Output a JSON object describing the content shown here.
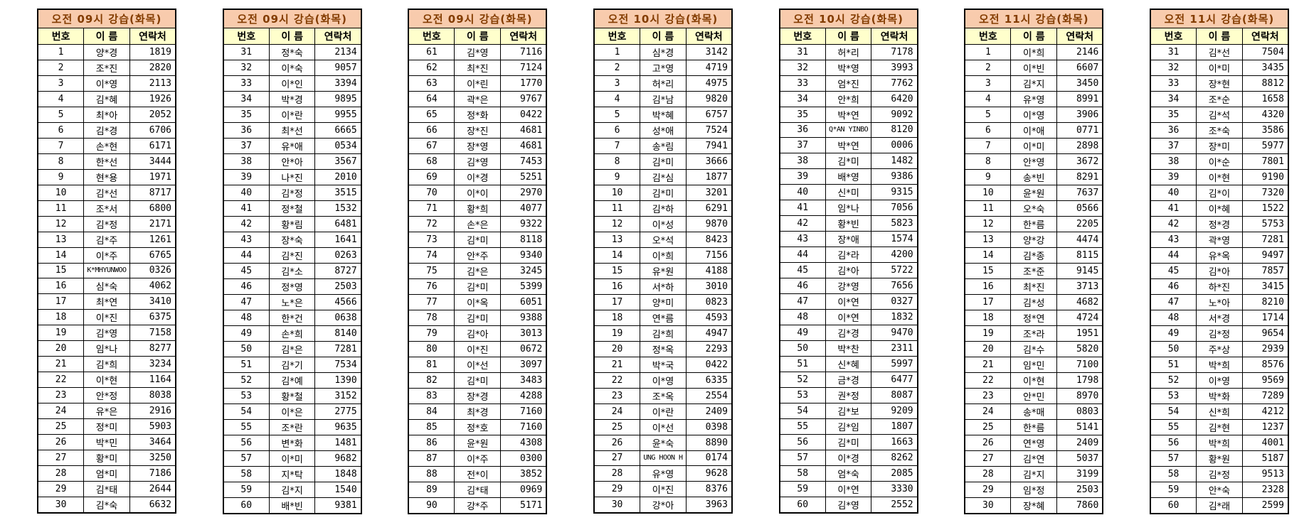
{
  "colors": {
    "title_bg": "#f8cbad",
    "title_text": "#833c00",
    "header_bg": "#ffffcc",
    "border": "#000000",
    "page_bg": "#ffffff"
  },
  "tables": [
    {
      "title": "오전 09시 강습(화목)",
      "headers": [
        "번호",
        "이 름",
        "연락처"
      ],
      "rows": [
        [
          "1",
          "양*경",
          "1819"
        ],
        [
          "2",
          "조*진",
          "2820"
        ],
        [
          "3",
          "이*영",
          "2113"
        ],
        [
          "4",
          "김*혜",
          "1926"
        ],
        [
          "5",
          "최*아",
          "2052"
        ],
        [
          "6",
          "김*경",
          "6706"
        ],
        [
          "7",
          "손*현",
          "6171"
        ],
        [
          "8",
          "한*선",
          "3444"
        ],
        [
          "9",
          "현*용",
          "1971"
        ],
        [
          "10",
          "김*선",
          "8717"
        ],
        [
          "11",
          "조*서",
          "6800"
        ],
        [
          "12",
          "김*정",
          "2171"
        ],
        [
          "13",
          "김*주",
          "1261"
        ],
        [
          "14",
          "이*주",
          "6765"
        ],
        [
          "15",
          "K*MHYUNWOO",
          "0326"
        ],
        [
          "16",
          "심*숙",
          "4062"
        ],
        [
          "17",
          "최*연",
          "3410"
        ],
        [
          "18",
          "이*진",
          "6375"
        ],
        [
          "19",
          "김*영",
          "7158"
        ],
        [
          "20",
          "임*나",
          "8277"
        ],
        [
          "21",
          "김*희",
          "3234"
        ],
        [
          "22",
          "이*현",
          "1164"
        ],
        [
          "23",
          "안*정",
          "8038"
        ],
        [
          "24",
          "유*은",
          "2916"
        ],
        [
          "25",
          "정*미",
          "5903"
        ],
        [
          "26",
          "박*민",
          "3464"
        ],
        [
          "27",
          "황*미",
          "3250"
        ],
        [
          "28",
          "엄*미",
          "7186"
        ],
        [
          "29",
          "김*태",
          "2644"
        ],
        [
          "30",
          "김*숙",
          "6632"
        ]
      ]
    },
    {
      "title": "오전 09시 강습(화목)",
      "headers": [
        "번호",
        "이 름",
        "연락처"
      ],
      "rows": [
        [
          "31",
          "정*숙",
          "2134"
        ],
        [
          "32",
          "이*숙",
          "9057"
        ],
        [
          "33",
          "이*인",
          "3394"
        ],
        [
          "34",
          "박*경",
          "9895"
        ],
        [
          "35",
          "이*란",
          "9955"
        ],
        [
          "36",
          "최*선",
          "6665"
        ],
        [
          "37",
          "유*애",
          "0534"
        ],
        [
          "38",
          "안*아",
          "3567"
        ],
        [
          "39",
          "나*진",
          "2010"
        ],
        [
          "40",
          "김*정",
          "3515"
        ],
        [
          "41",
          "정*철",
          "1532"
        ],
        [
          "42",
          "황*림",
          "6481"
        ],
        [
          "43",
          "장*숙",
          "1641"
        ],
        [
          "44",
          "김*진",
          "0263"
        ],
        [
          "45",
          "김*소",
          "8727"
        ],
        [
          "46",
          "정*영",
          "2503"
        ],
        [
          "47",
          "노*은",
          "4566"
        ],
        [
          "48",
          "한*건",
          "0638"
        ],
        [
          "49",
          "손*희",
          "8140"
        ],
        [
          "50",
          "김*은",
          "7281"
        ],
        [
          "51",
          "김*기",
          "7534"
        ],
        [
          "52",
          "김*예",
          "1390"
        ],
        [
          "53",
          "황*철",
          "3152"
        ],
        [
          "54",
          "이*은",
          "2775"
        ],
        [
          "55",
          "조*란",
          "9635"
        ],
        [
          "56",
          "변*화",
          "1481"
        ],
        [
          "57",
          "이*미",
          "9682"
        ],
        [
          "58",
          "지*탁",
          "1848"
        ],
        [
          "59",
          "김*지",
          "1540"
        ],
        [
          "60",
          "배*빈",
          "9381"
        ]
      ]
    },
    {
      "title": "오전 09시 강습(화목)",
      "headers": [
        "번호",
        "이 름",
        "연락처"
      ],
      "rows": [
        [
          "61",
          "김*영",
          "7116"
        ],
        [
          "62",
          "최*진",
          "7124"
        ],
        [
          "63",
          "이*린",
          "1770"
        ],
        [
          "64",
          "곽*은",
          "9767"
        ],
        [
          "65",
          "정*화",
          "0422"
        ],
        [
          "66",
          "장*진",
          "4681"
        ],
        [
          "67",
          "장*영",
          "4681"
        ],
        [
          "68",
          "김*영",
          "7453"
        ],
        [
          "69",
          "이*경",
          "5251"
        ],
        [
          "70",
          "이*이",
          "2970"
        ],
        [
          "71",
          "황*희",
          "4077"
        ],
        [
          "72",
          "손*은",
          "9322"
        ],
        [
          "73",
          "김*미",
          "8118"
        ],
        [
          "74",
          "안*주",
          "9340"
        ],
        [
          "75",
          "김*은",
          "3245"
        ],
        [
          "76",
          "김*미",
          "5399"
        ],
        [
          "77",
          "이*옥",
          "6051"
        ],
        [
          "78",
          "김*미",
          "9388"
        ],
        [
          "79",
          "김*아",
          "3013"
        ],
        [
          "80",
          "이*진",
          "0672"
        ],
        [
          "81",
          "이*선",
          "3097"
        ],
        [
          "82",
          "김*미",
          "3483"
        ],
        [
          "83",
          "장*경",
          "4288"
        ],
        [
          "84",
          "최*경",
          "7160"
        ],
        [
          "85",
          "정*호",
          "7160"
        ],
        [
          "86",
          "윤*원",
          "4308"
        ],
        [
          "87",
          "이*주",
          "0300"
        ],
        [
          "88",
          "전*이",
          "3852"
        ],
        [
          "89",
          "김*태",
          "0969"
        ],
        [
          "90",
          "강*주",
          "5171"
        ]
      ]
    },
    {
      "title": "오전 10시 강습(화목)",
      "headers": [
        "번호",
        "이 름",
        "연락처"
      ],
      "rows": [
        [
          "1",
          "심*경",
          "3142"
        ],
        [
          "2",
          "고*영",
          "4719"
        ],
        [
          "3",
          "허*리",
          "4975"
        ],
        [
          "4",
          "김*남",
          "9820"
        ],
        [
          "5",
          "박*혜",
          "6757"
        ],
        [
          "6",
          "성*애",
          "7524"
        ],
        [
          "7",
          "송*림",
          "7941"
        ],
        [
          "8",
          "김*미",
          "3666"
        ],
        [
          "9",
          "김*심",
          "1877"
        ],
        [
          "10",
          "김*미",
          "3201"
        ],
        [
          "11",
          "김*하",
          "6291"
        ],
        [
          "12",
          "이*성",
          "9870"
        ],
        [
          "13",
          "오*석",
          "8423"
        ],
        [
          "14",
          "이*희",
          "7156"
        ],
        [
          "15",
          "유*원",
          "4188"
        ],
        [
          "16",
          "서*하",
          "3010"
        ],
        [
          "17",
          "양*미",
          "0823"
        ],
        [
          "18",
          "연*름",
          "4593"
        ],
        [
          "19",
          "김*희",
          "4947"
        ],
        [
          "20",
          "정*옥",
          "2293"
        ],
        [
          "21",
          "박*국",
          "0422"
        ],
        [
          "22",
          "이*영",
          "6335"
        ],
        [
          "23",
          "조*옥",
          "2554"
        ],
        [
          "24",
          "이*란",
          "2409"
        ],
        [
          "25",
          "이*선",
          "0398"
        ],
        [
          "26",
          "윤*숙",
          "8890"
        ],
        [
          "27",
          "UNG HOON H",
          "0174"
        ],
        [
          "28",
          "유*영",
          "9628"
        ],
        [
          "29",
          "이*진",
          "8376"
        ],
        [
          "30",
          "강*아",
          "3963"
        ]
      ]
    },
    {
      "title": "오전 10시 강습(화목)",
      "headers": [
        "번호",
        "이 름",
        "연락처"
      ],
      "rows": [
        [
          "31",
          "허*리",
          "7178"
        ],
        [
          "32",
          "박*영",
          "3993"
        ],
        [
          "33",
          "엄*진",
          "7762"
        ],
        [
          "34",
          "안*희",
          "6420"
        ],
        [
          "35",
          "박*연",
          "9092"
        ],
        [
          "36",
          "Q*AN YINBO",
          "8120"
        ],
        [
          "37",
          "박*연",
          "0006"
        ],
        [
          "38",
          "김*미",
          "1482"
        ],
        [
          "39",
          "배*영",
          "9386"
        ],
        [
          "40",
          "신*미",
          "9315"
        ],
        [
          "41",
          "임*나",
          "7056"
        ],
        [
          "42",
          "황*빈",
          "5823"
        ],
        [
          "43",
          "장*애",
          "1574"
        ],
        [
          "44",
          "김*라",
          "4200"
        ],
        [
          "45",
          "김*아",
          "5722"
        ],
        [
          "46",
          "강*영",
          "7656"
        ],
        [
          "47",
          "이*연",
          "0327"
        ],
        [
          "48",
          "이*연",
          "1832"
        ],
        [
          "49",
          "김*경",
          "9470"
        ],
        [
          "50",
          "박*찬",
          "2311"
        ],
        [
          "51",
          "신*혜",
          "5997"
        ],
        [
          "52",
          "금*경",
          "6477"
        ],
        [
          "53",
          "권*정",
          "8087"
        ],
        [
          "54",
          "김*보",
          "9209"
        ],
        [
          "55",
          "김*임",
          "1807"
        ],
        [
          "56",
          "김*미",
          "1663"
        ],
        [
          "57",
          "이*경",
          "8262"
        ],
        [
          "58",
          "엄*숙",
          "2085"
        ],
        [
          "59",
          "이*연",
          "3330"
        ],
        [
          "60",
          "김*영",
          "2552"
        ]
      ]
    },
    {
      "title": "오전 11시 강습(화목)",
      "headers": [
        "번호",
        "이 름",
        "연락처"
      ],
      "rows": [
        [
          "1",
          "이*희",
          "2146"
        ],
        [
          "2",
          "이*빈",
          "6607"
        ],
        [
          "3",
          "김*지",
          "3450"
        ],
        [
          "4",
          "유*영",
          "8991"
        ],
        [
          "5",
          "이*영",
          "3906"
        ],
        [
          "6",
          "이*애",
          "0771"
        ],
        [
          "7",
          "이*미",
          "2898"
        ],
        [
          "8",
          "안*영",
          "3672"
        ],
        [
          "9",
          "송*빈",
          "8291"
        ],
        [
          "10",
          "윤*원",
          "7637"
        ],
        [
          "11",
          "오*숙",
          "0566"
        ],
        [
          "12",
          "한*름",
          "2205"
        ],
        [
          "13",
          "양*강",
          "4474"
        ],
        [
          "14",
          "김*종",
          "8115"
        ],
        [
          "15",
          "조*준",
          "9145"
        ],
        [
          "16",
          "최*진",
          "3713"
        ],
        [
          "17",
          "김*성",
          "4682"
        ],
        [
          "18",
          "정*연",
          "4724"
        ],
        [
          "19",
          "조*라",
          "1951"
        ],
        [
          "20",
          "김*수",
          "5820"
        ],
        [
          "21",
          "임*민",
          "7100"
        ],
        [
          "22",
          "이*현",
          "1798"
        ],
        [
          "23",
          "안*민",
          "8970"
        ],
        [
          "24",
          "송*매",
          "0803"
        ],
        [
          "25",
          "한*름",
          "5141"
        ],
        [
          "26",
          "연*영",
          "2409"
        ],
        [
          "27",
          "김*연",
          "5037"
        ],
        [
          "28",
          "김*지",
          "3199"
        ],
        [
          "29",
          "임*정",
          "2503"
        ],
        [
          "30",
          "장*혜",
          "7860"
        ]
      ]
    },
    {
      "title": "오전 11시 강습(화목)",
      "headers": [
        "번호",
        "이 름",
        "연락처"
      ],
      "rows": [
        [
          "31",
          "김*선",
          "7504"
        ],
        [
          "32",
          "이*미",
          "3435"
        ],
        [
          "33",
          "장*현",
          "8812"
        ],
        [
          "34",
          "조*순",
          "1658"
        ],
        [
          "35",
          "김*석",
          "4320"
        ],
        [
          "36",
          "조*숙",
          "3586"
        ],
        [
          "37",
          "장*미",
          "5977"
        ],
        [
          "38",
          "이*순",
          "7801"
        ],
        [
          "39",
          "이*현",
          "9190"
        ],
        [
          "40",
          "김*이",
          "7320"
        ],
        [
          "41",
          "이*혜",
          "1522"
        ],
        [
          "42",
          "정*경",
          "5753"
        ],
        [
          "43",
          "곽*영",
          "7281"
        ],
        [
          "44",
          "유*옥",
          "9497"
        ],
        [
          "45",
          "김*아",
          "7857"
        ],
        [
          "46",
          "하*진",
          "3415"
        ],
        [
          "47",
          "노*아",
          "8210"
        ],
        [
          "48",
          "서*경",
          "1714"
        ],
        [
          "49",
          "김*정",
          "9654"
        ],
        [
          "50",
          "주*상",
          "2939"
        ],
        [
          "51",
          "박*희",
          "8576"
        ],
        [
          "52",
          "이*영",
          "9569"
        ],
        [
          "53",
          "박*화",
          "7289"
        ],
        [
          "54",
          "신*희",
          "4212"
        ],
        [
          "55",
          "김*현",
          "1237"
        ],
        [
          "56",
          "박*희",
          "4001"
        ],
        [
          "57",
          "황*원",
          "5187"
        ],
        [
          "58",
          "김*정",
          "9513"
        ],
        [
          "59",
          "안*숙",
          "2328"
        ],
        [
          "60",
          "김*래",
          "2599"
        ]
      ]
    }
  ]
}
